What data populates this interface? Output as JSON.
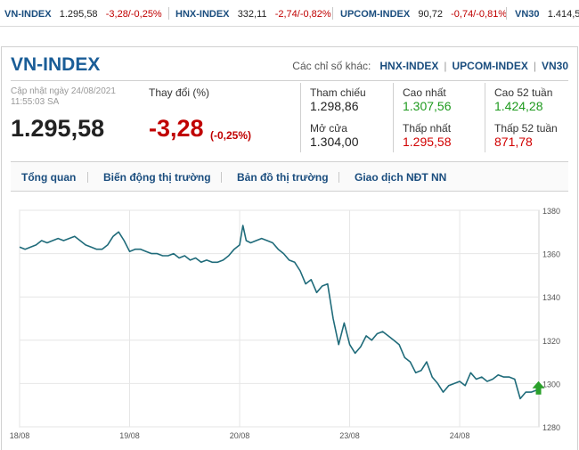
{
  "ticker": [
    {
      "name": "VN-INDEX",
      "value": "1.295,58",
      "change": "-3,28/-0,25%"
    },
    {
      "name": "HNX-INDEX",
      "value": "332,11",
      "change": "-2,74/-0,82%"
    },
    {
      "name": "UPCOM-INDEX",
      "value": "90,72",
      "change": "-0,74/-0,81%"
    },
    {
      "name": "VN30",
      "value": "1.414,5",
      "change": ""
    }
  ],
  "header": {
    "title": "VN-INDEX",
    "other_label": "Các chỉ số khác:",
    "other_links": [
      "HNX-INDEX",
      "UPCOM-INDEX",
      "VN30"
    ]
  },
  "summary": {
    "updated_label": "Cập nhật ngày 24/08/2021",
    "updated_time": "11:55:03 SA",
    "price": "1.295,58",
    "change_label": "Thay đổi (%)",
    "change": "-3,28",
    "change_pct": "(-0,25%)"
  },
  "stats": {
    "ref_label": "Tham chiếu",
    "ref_value": "1.298,86",
    "open_label": "Mở cửa",
    "open_value": "1.304,00",
    "high_label": "Cao nhất",
    "high_value": "1.307,56",
    "low_label": "Thấp nhất",
    "low_value": "1.295,58",
    "high52_label": "Cao 52 tuần",
    "high52_value": "1.424,28",
    "low52_label": "Thấp 52 tuần",
    "low52_value": "871,78"
  },
  "tabs": [
    "Tổng quan",
    "Biến động thị trường",
    "Bản đồ thị trường",
    "Giao dịch NĐT NN"
  ],
  "colors": {
    "line": "#1f6b7a",
    "up": "#2aa02a",
    "down": "#c00000",
    "brand": "#1a5d97"
  },
  "chart_data": {
    "type": "line",
    "title": "",
    "xlabel": "",
    "ylabel": "",
    "ylim": [
      1280,
      1380
    ],
    "yticks": [
      1280,
      1300,
      1320,
      1340,
      1360,
      1380
    ],
    "xticks": [
      "18/08",
      "19/08",
      "20/08",
      "23/08",
      "24/08"
    ],
    "x": [
      0,
      0.05,
      0.1,
      0.15,
      0.2,
      0.25,
      0.3,
      0.35,
      0.4,
      0.45,
      0.5,
      0.55,
      0.6,
      0.65,
      0.7,
      0.75,
      0.8,
      0.85,
      0.9,
      0.95,
      1.0,
      1.05,
      1.1,
      1.15,
      1.2,
      1.25,
      1.3,
      1.35,
      1.4,
      1.45,
      1.5,
      1.55,
      1.6,
      1.65,
      1.7,
      1.75,
      1.8,
      1.85,
      1.9,
      1.95,
      2.0,
      2.03,
      2.06,
      2.1,
      2.15,
      2.2,
      2.25,
      2.3,
      2.35,
      2.4,
      2.45,
      2.5,
      2.55,
      2.6,
      2.65,
      2.7,
      2.75,
      2.8,
      2.85,
      2.9,
      2.95,
      3.0,
      3.05,
      3.1,
      3.15,
      3.2,
      3.25,
      3.3,
      3.35,
      3.4,
      3.45,
      3.5,
      3.55,
      3.6,
      3.65,
      3.7,
      3.75,
      3.8,
      3.85,
      3.9,
      3.95,
      4.0,
      4.05,
      4.1,
      4.15,
      4.2,
      4.25,
      4.3,
      4.35,
      4.4,
      4.45,
      4.5,
      4.55,
      4.6,
      4.65,
      4.7
    ],
    "values": [
      1363,
      1362,
      1363,
      1364,
      1366,
      1365,
      1366,
      1367,
      1366,
      1367,
      1368,
      1366,
      1364,
      1363,
      1362,
      1362,
      1364,
      1368,
      1370,
      1366,
      1361,
      1362,
      1362,
      1361,
      1360,
      1360,
      1359,
      1359,
      1360,
      1358,
      1359,
      1357,
      1358,
      1356,
      1357,
      1356,
      1356,
      1357,
      1359,
      1362,
      1364,
      1373,
      1366,
      1365,
      1366,
      1367,
      1366,
      1365,
      1362,
      1360,
      1357,
      1356,
      1352,
      1346,
      1348,
      1342,
      1345,
      1346,
      1330,
      1318,
      1328,
      1318,
      1314,
      1317,
      1322,
      1320,
      1323,
      1324,
      1322,
      1320,
      1318,
      1312,
      1310,
      1305,
      1306,
      1310,
      1303,
      1300,
      1296,
      1299,
      1300,
      1301,
      1299,
      1305,
      1302,
      1303,
      1301,
      1302,
      1304,
      1303,
      1303,
      1302,
      1293,
      1296,
      1296,
      1297
    ]
  }
}
